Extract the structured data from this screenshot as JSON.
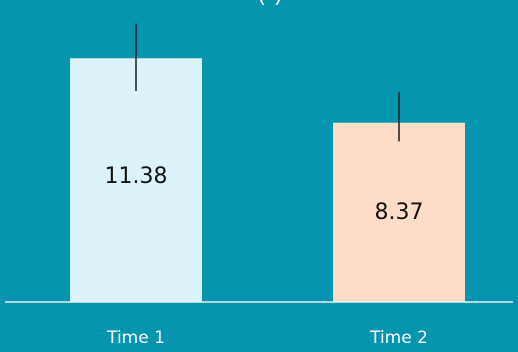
{
  "chart_data": {
    "type": "bar",
    "title": "( )",
    "categories": [
      "Time 1",
      "Time 2"
    ],
    "values": [
      11.38,
      8.37
    ],
    "value_labels": [
      "11.38",
      "8.37"
    ],
    "error_upper": [
      13.0,
      9.8
    ],
    "error_lower": [
      9.85,
      7.5
    ],
    "ylim": [
      0,
      14.1
    ],
    "grid": false,
    "legend": "none",
    "colors": {
      "background": "#0595AE",
      "bars": [
        "#DDF3FA",
        "#FFDCC8"
      ],
      "axis": "#E8F1F3",
      "error_bar": "#1B1B1B",
      "tick_text": "#FFFFFF",
      "value_text": "#111111"
    }
  }
}
